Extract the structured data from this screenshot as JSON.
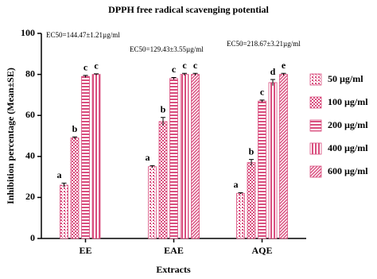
{
  "chart_data": {
    "type": "bar",
    "title": "DPPH free radical scavenging potential",
    "x_label": "Extracts",
    "y_label": "Inhibition percentage (Mean±SE)",
    "categories": [
      "EE",
      "EAE",
      "AQE"
    ],
    "series": [
      {
        "name": "50 µg/ml",
        "color": "#d94f7f",
        "values": [
          26,
          35,
          22
        ],
        "errors": [
          1,
          0.5,
          0.3
        ],
        "letters": [
          "a",
          "a",
          "a"
        ]
      },
      {
        "name": "100 µg/ml",
        "color": "#d94f7f",
        "values": [
          49,
          57,
          37
        ],
        "errors": [
          0.5,
          2,
          1.5
        ],
        "letters": [
          "b",
          "b",
          "b"
        ]
      },
      {
        "name": "200 µg/ml",
        "color": "#d94f7f",
        "values": [
          79,
          78,
          67
        ],
        "errors": [
          0.5,
          0.5,
          0.5
        ],
        "letters": [
          "c",
          "c",
          "c"
        ]
      },
      {
        "name": "400 µg/ml",
        "color": "#d94f7f",
        "values": [
          80,
          80,
          76
        ],
        "errors": [
          0.3,
          0.5,
          1.5
        ],
        "letters": [
          "c",
          "c",
          "d"
        ]
      },
      {
        "name": "600 µg/ml",
        "color": "#d94f7f",
        "values": [
          null,
          80,
          80
        ],
        "errors": [
          null,
          0.5,
          0.5
        ],
        "letters": [
          null,
          "c",
          "e"
        ]
      }
    ],
    "annotations": [
      "EC50=144.47±1.21µg/ml",
      "EC50=129.43±3.55µg/ml",
      "EC50=218.67±3.21µg/ml"
    ],
    "ylim": [
      0,
      100
    ],
    "yticks": [
      0,
      20,
      40,
      60,
      80,
      100
    ]
  }
}
